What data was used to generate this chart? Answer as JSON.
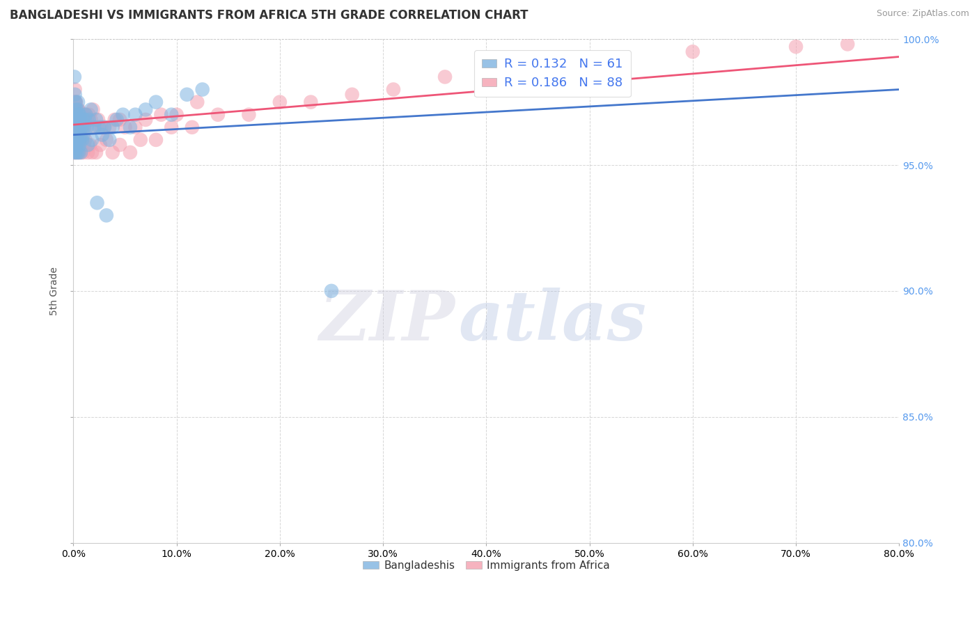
{
  "title": "BANGLADESHI VS IMMIGRANTS FROM AFRICA 5TH GRADE CORRELATION CHART",
  "source": "Source: ZipAtlas.com",
  "xlabel_vals": [
    0.0,
    10.0,
    20.0,
    30.0,
    40.0,
    50.0,
    60.0,
    70.0,
    80.0
  ],
  "ylabel_vals": [
    80.0,
    85.0,
    90.0,
    95.0,
    100.0
  ],
  "xlim": [
    0.0,
    80.0
  ],
  "ylim": [
    80.0,
    100.0
  ],
  "ylabel": "5th Grade",
  "blue_R": 0.132,
  "blue_N": 61,
  "pink_R": 0.186,
  "pink_N": 88,
  "blue_color": "#7EB3E0",
  "pink_color": "#F4A0B0",
  "blue_line_color": "#4477CC",
  "pink_line_color": "#EE5577",
  "watermark_zip": "ZIP",
  "watermark_atlas": "atlas",
  "legend_label_blue": "Bangladeshis",
  "legend_label_pink": "Immigrants from Africa",
  "blue_scatter_x": [
    0.1,
    0.15,
    0.2,
    0.2,
    0.25,
    0.3,
    0.3,
    0.35,
    0.4,
    0.4,
    0.45,
    0.5,
    0.5,
    0.55,
    0.6,
    0.6,
    0.65,
    0.7,
    0.8,
    0.9,
    1.0,
    1.1,
    1.2,
    1.3,
    1.5,
    1.7,
    2.0,
    2.2,
    2.5,
    2.8,
    3.0,
    3.5,
    3.8,
    4.2,
    4.8,
    5.5,
    6.0,
    7.0,
    8.0,
    9.5,
    11.0,
    12.5,
    0.05,
    0.12,
    0.18,
    0.22,
    0.28,
    0.32,
    0.38,
    0.42,
    0.52,
    0.58,
    0.62,
    0.72,
    0.85,
    0.95,
    1.4,
    1.8,
    2.3,
    3.2,
    25.0
  ],
  "blue_scatter_y": [
    98.5,
    97.8,
    97.5,
    96.8,
    97.2,
    97.0,
    96.5,
    96.8,
    97.2,
    96.0,
    97.5,
    96.5,
    97.0,
    96.8,
    96.5,
    97.0,
    96.2,
    96.8,
    96.5,
    96.8,
    96.5,
    96.8,
    97.0,
    96.5,
    96.8,
    97.2,
    96.5,
    96.8,
    96.5,
    96.2,
    96.5,
    96.0,
    96.5,
    96.8,
    97.0,
    96.5,
    97.0,
    97.2,
    97.5,
    97.0,
    97.8,
    98.0,
    95.5,
    95.8,
    96.0,
    95.5,
    95.8,
    96.0,
    95.5,
    96.2,
    95.5,
    95.8,
    96.0,
    95.5,
    96.0,
    96.2,
    95.8,
    96.0,
    93.5,
    93.0,
    90.0
  ],
  "pink_scatter_x": [
    0.08,
    0.12,
    0.15,
    0.2,
    0.2,
    0.25,
    0.28,
    0.3,
    0.32,
    0.35,
    0.38,
    0.4,
    0.42,
    0.45,
    0.48,
    0.5,
    0.52,
    0.55,
    0.58,
    0.6,
    0.62,
    0.65,
    0.7,
    0.75,
    0.8,
    0.85,
    0.9,
    1.0,
    1.1,
    1.2,
    1.3,
    1.5,
    1.7,
    1.9,
    2.1,
    2.4,
    2.7,
    3.0,
    3.5,
    4.0,
    4.5,
    5.0,
    6.0,
    7.0,
    8.5,
    10.0,
    12.0,
    0.05,
    0.1,
    0.18,
    0.22,
    0.28,
    0.32,
    0.38,
    0.42,
    0.52,
    0.62,
    0.72,
    0.82,
    0.95,
    1.05,
    1.15,
    1.4,
    1.6,
    1.8,
    2.2,
    2.6,
    3.2,
    3.8,
    4.5,
    5.5,
    6.5,
    8.0,
    9.5,
    11.5,
    14.0,
    17.0,
    20.0,
    23.0,
    27.0,
    31.0,
    36.0,
    40.0,
    45.0,
    50.0,
    60.0,
    70.0,
    75.0
  ],
  "pink_scatter_y": [
    97.5,
    97.2,
    98.0,
    97.5,
    97.0,
    97.5,
    97.0,
    96.8,
    97.2,
    96.5,
    97.0,
    96.8,
    97.2,
    96.5,
    97.0,
    96.8,
    97.2,
    96.5,
    97.0,
    96.8,
    96.5,
    97.0,
    96.8,
    96.5,
    97.0,
    96.5,
    96.8,
    97.0,
    96.5,
    97.0,
    96.8,
    97.0,
    96.8,
    97.2,
    96.5,
    96.8,
    96.5,
    96.5,
    96.5,
    96.8,
    96.8,
    96.5,
    96.5,
    96.8,
    97.0,
    97.0,
    97.5,
    95.5,
    95.8,
    95.5,
    95.8,
    96.0,
    95.5,
    95.8,
    96.0,
    95.5,
    96.0,
    95.5,
    96.0,
    95.5,
    95.8,
    96.0,
    95.5,
    95.8,
    95.5,
    95.5,
    95.8,
    96.0,
    95.5,
    95.8,
    95.5,
    96.0,
    96.0,
    96.5,
    96.5,
    97.0,
    97.0,
    97.5,
    97.5,
    97.8,
    98.0,
    98.5,
    98.8,
    99.0,
    99.2,
    99.5,
    99.7,
    99.8
  ]
}
